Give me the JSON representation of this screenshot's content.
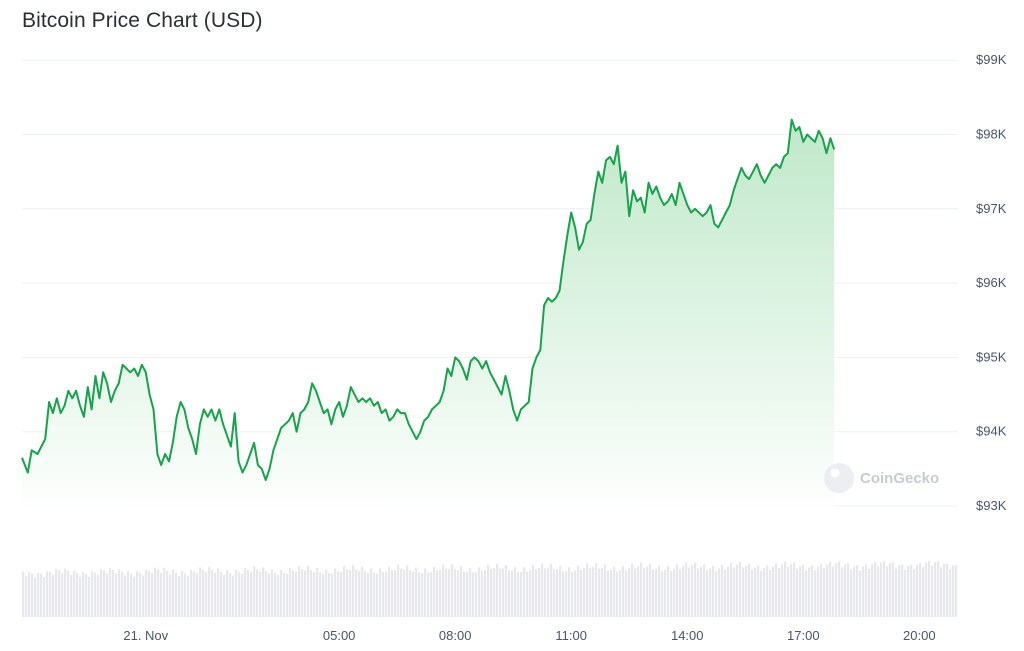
{
  "title": "Bitcoin Price Chart (USD)",
  "watermark": "CoinGecko",
  "colors": {
    "line": "#16a34a",
    "fill_top": "#bfe8c9",
    "fill_bottom": "#ffffff",
    "volume": "#e6e8ec",
    "grid": "#eceff3"
  },
  "chart_data": {
    "type": "line",
    "title": "Bitcoin Price Chart (USD)",
    "xlabel": "",
    "ylabel": "",
    "grid": true,
    "legend": "none",
    "x_range_hours": [
      -3.2,
      21.0
    ],
    "ylim": [
      92000,
      99600
    ],
    "y_ticks": [
      {
        "value": 93000,
        "label": "$93K"
      },
      {
        "value": 94000,
        "label": "$94K"
      },
      {
        "value": 95000,
        "label": "$95K"
      },
      {
        "value": 96000,
        "label": "$96K"
      },
      {
        "value": 97000,
        "label": "$97K"
      },
      {
        "value": 98000,
        "label": "$98K"
      },
      {
        "value": 99000,
        "label": "$99K"
      }
    ],
    "x_ticks": [
      {
        "value": 0,
        "label": "21. Nov"
      },
      {
        "value": 5,
        "label": "05:00"
      },
      {
        "value": 8,
        "label": "08:00"
      },
      {
        "value": 11,
        "label": "11:00"
      },
      {
        "value": 14,
        "label": "14:00"
      },
      {
        "value": 17,
        "label": "17:00"
      },
      {
        "value": 20,
        "label": "20:00"
      }
    ],
    "series": [
      {
        "points": [
          [
            -3.2,
            93650
          ],
          [
            -3.05,
            93450
          ],
          [
            -2.95,
            93750
          ],
          [
            -2.8,
            93700
          ],
          [
            -2.6,
            93900
          ],
          [
            -2.5,
            94400
          ],
          [
            -2.4,
            94250
          ],
          [
            -2.3,
            94450
          ],
          [
            -2.2,
            94250
          ],
          [
            -2.1,
            94350
          ],
          [
            -2.0,
            94550
          ],
          [
            -1.9,
            94450
          ],
          [
            -1.8,
            94550
          ],
          [
            -1.7,
            94350
          ],
          [
            -1.6,
            94200
          ],
          [
            -1.5,
            94600
          ],
          [
            -1.4,
            94300
          ],
          [
            -1.3,
            94750
          ],
          [
            -1.2,
            94450
          ],
          [
            -1.1,
            94800
          ],
          [
            -1.0,
            94650
          ],
          [
            -0.9,
            94400
          ],
          [
            -0.8,
            94550
          ],
          [
            -0.7,
            94650
          ],
          [
            -0.6,
            94900
          ],
          [
            -0.5,
            94850
          ],
          [
            -0.4,
            94800
          ],
          [
            -0.3,
            94850
          ],
          [
            -0.2,
            94750
          ],
          [
            -0.1,
            94900
          ],
          [
            0.0,
            94800
          ],
          [
            0.1,
            94500
          ],
          [
            0.2,
            94300
          ],
          [
            0.3,
            93700
          ],
          [
            0.4,
            93550
          ],
          [
            0.5,
            93700
          ],
          [
            0.6,
            93600
          ],
          [
            0.7,
            93850
          ],
          [
            0.8,
            94200
          ],
          [
            0.9,
            94400
          ],
          [
            1.0,
            94300
          ],
          [
            1.1,
            94050
          ],
          [
            1.2,
            93900
          ],
          [
            1.3,
            93700
          ],
          [
            1.4,
            94100
          ],
          [
            1.5,
            94300
          ],
          [
            1.6,
            94200
          ],
          [
            1.7,
            94300
          ],
          [
            1.8,
            94150
          ],
          [
            1.9,
            94300
          ],
          [
            2.0,
            94100
          ],
          [
            2.1,
            93950
          ],
          [
            2.2,
            93800
          ],
          [
            2.3,
            94250
          ],
          [
            2.4,
            93600
          ],
          [
            2.5,
            93450
          ],
          [
            2.6,
            93550
          ],
          [
            2.7,
            93700
          ],
          [
            2.8,
            93850
          ],
          [
            2.9,
            93550
          ],
          [
            3.0,
            93500
          ],
          [
            3.1,
            93350
          ],
          [
            3.2,
            93500
          ],
          [
            3.3,
            93750
          ],
          [
            3.4,
            93900
          ],
          [
            3.5,
            94050
          ],
          [
            3.6,
            94100
          ],
          [
            3.7,
            94150
          ],
          [
            3.8,
            94250
          ],
          [
            3.9,
            94000
          ],
          [
            4.0,
            94250
          ],
          [
            4.1,
            94300
          ],
          [
            4.2,
            94400
          ],
          [
            4.3,
            94650
          ],
          [
            4.4,
            94550
          ],
          [
            4.5,
            94400
          ],
          [
            4.6,
            94250
          ],
          [
            4.7,
            94300
          ],
          [
            4.8,
            94100
          ],
          [
            4.9,
            94300
          ],
          [
            5.0,
            94400
          ],
          [
            5.1,
            94200
          ],
          [
            5.2,
            94350
          ],
          [
            5.3,
            94600
          ],
          [
            5.4,
            94500
          ],
          [
            5.5,
            94400
          ],
          [
            5.6,
            94450
          ],
          [
            5.7,
            94400
          ],
          [
            5.8,
            94450
          ],
          [
            5.9,
            94350
          ],
          [
            6.0,
            94400
          ],
          [
            6.1,
            94250
          ],
          [
            6.2,
            94300
          ],
          [
            6.3,
            94150
          ],
          [
            6.4,
            94200
          ],
          [
            6.5,
            94300
          ],
          [
            6.6,
            94250
          ],
          [
            6.7,
            94250
          ],
          [
            6.8,
            94100
          ],
          [
            6.9,
            94000
          ],
          [
            7.0,
            93900
          ],
          [
            7.1,
            94000
          ],
          [
            7.2,
            94150
          ],
          [
            7.3,
            94200
          ],
          [
            7.4,
            94300
          ],
          [
            7.5,
            94350
          ],
          [
            7.6,
            94400
          ],
          [
            7.7,
            94550
          ],
          [
            7.8,
            94850
          ],
          [
            7.9,
            94750
          ],
          [
            8.0,
            95000
          ],
          [
            8.1,
            94950
          ],
          [
            8.2,
            94850
          ],
          [
            8.3,
            94700
          ],
          [
            8.4,
            94950
          ],
          [
            8.5,
            95000
          ],
          [
            8.6,
            94950
          ],
          [
            8.7,
            94850
          ],
          [
            8.8,
            94950
          ],
          [
            8.9,
            94800
          ],
          [
            9.0,
            94700
          ],
          [
            9.1,
            94600
          ],
          [
            9.2,
            94500
          ],
          [
            9.3,
            94750
          ],
          [
            9.4,
            94550
          ],
          [
            9.5,
            94300
          ],
          [
            9.6,
            94150
          ],
          [
            9.7,
            94300
          ],
          [
            9.8,
            94350
          ],
          [
            9.9,
            94400
          ],
          [
            10.0,
            94850
          ],
          [
            10.1,
            95000
          ],
          [
            10.2,
            95100
          ],
          [
            10.3,
            95700
          ],
          [
            10.4,
            95800
          ],
          [
            10.5,
            95750
          ],
          [
            10.6,
            95800
          ],
          [
            10.7,
            95900
          ],
          [
            10.8,
            96300
          ],
          [
            10.9,
            96650
          ],
          [
            11.0,
            96950
          ],
          [
            11.1,
            96750
          ],
          [
            11.2,
            96450
          ],
          [
            11.3,
            96550
          ],
          [
            11.4,
            96800
          ],
          [
            11.5,
            96850
          ],
          [
            11.6,
            97200
          ],
          [
            11.7,
            97500
          ],
          [
            11.8,
            97350
          ],
          [
            11.9,
            97650
          ],
          [
            12.0,
            97700
          ],
          [
            12.1,
            97600
          ],
          [
            12.2,
            97850
          ],
          [
            12.3,
            97350
          ],
          [
            12.4,
            97500
          ],
          [
            12.5,
            96900
          ],
          [
            12.6,
            97250
          ],
          [
            12.7,
            97100
          ],
          [
            12.8,
            97150
          ],
          [
            12.9,
            96950
          ],
          [
            13.0,
            97350
          ],
          [
            13.1,
            97200
          ],
          [
            13.2,
            97300
          ],
          [
            13.3,
            97150
          ],
          [
            13.4,
            97050
          ],
          [
            13.5,
            97100
          ],
          [
            13.6,
            97200
          ],
          [
            13.7,
            97050
          ],
          [
            13.8,
            97350
          ],
          [
            13.9,
            97200
          ],
          [
            14.0,
            97050
          ],
          [
            14.1,
            96950
          ],
          [
            14.2,
            97000
          ],
          [
            14.3,
            96950
          ],
          [
            14.4,
            96900
          ],
          [
            14.5,
            96950
          ],
          [
            14.6,
            97050
          ],
          [
            14.7,
            96800
          ],
          [
            14.8,
            96750
          ],
          [
            14.9,
            96850
          ],
          [
            15.0,
            96950
          ],
          [
            15.1,
            97050
          ],
          [
            15.2,
            97250
          ],
          [
            15.3,
            97400
          ],
          [
            15.4,
            97550
          ],
          [
            15.5,
            97450
          ],
          [
            15.6,
            97400
          ],
          [
            15.7,
            97500
          ],
          [
            15.8,
            97600
          ],
          [
            15.9,
            97450
          ],
          [
            16.0,
            97350
          ],
          [
            16.1,
            97450
          ],
          [
            16.2,
            97550
          ],
          [
            16.3,
            97600
          ],
          [
            16.4,
            97550
          ],
          [
            16.5,
            97700
          ],
          [
            16.6,
            97750
          ],
          [
            16.7,
            98200
          ],
          [
            16.8,
            98050
          ],
          [
            16.9,
            98100
          ],
          [
            17.0,
            97900
          ],
          [
            17.1,
            98000
          ],
          [
            17.2,
            97950
          ],
          [
            17.3,
            97900
          ],
          [
            17.4,
            98050
          ],
          [
            17.5,
            97950
          ],
          [
            17.6,
            97750
          ],
          [
            17.7,
            97950
          ],
          [
            17.8,
            97800
          ]
        ]
      }
    ]
  }
}
